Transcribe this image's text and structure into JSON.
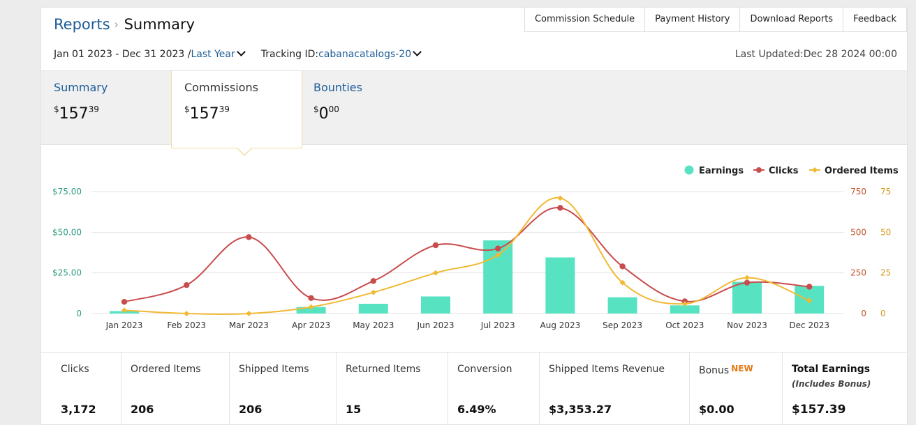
{
  "breadcrumb": {
    "root": "Reports",
    "current": "Summary"
  },
  "top_links": [
    "Commission Schedule",
    "Payment History",
    "Download Reports",
    "Feedback"
  ],
  "date_range": {
    "text": "Jan 01 2023 - Dec 31 2023 /",
    "preset": "Last Year"
  },
  "tracking": {
    "label": "Tracking ID:",
    "value": "cabanacatalogs-20"
  },
  "last_updated": "Last Updated:Dec 28 2024 00:00",
  "tabs": [
    {
      "label": "Summary",
      "dollar": "$",
      "whole": "157",
      "cents": "39"
    },
    {
      "label": "Commissions",
      "dollar": "$",
      "whole": "157",
      "cents": "39"
    },
    {
      "label": "Bounties",
      "dollar": "$",
      "whole": "0",
      "cents": "00"
    }
  ],
  "chart_data": {
    "type": "bar+line",
    "categories": [
      "Jan 2023",
      "Feb 2023",
      "Mar 2023",
      "Apr 2023",
      "May 2023",
      "Jun 2023",
      "Jul 2023",
      "Aug 2023",
      "Sep 2023",
      "Oct 2023",
      "Nov 2023",
      "Dec 2023"
    ],
    "series": [
      {
        "name": "Earnings",
        "type": "bar",
        "axis": "left",
        "color": "#57e2c2",
        "values": [
          1.5,
          0,
          0,
          4,
          6,
          10.5,
          45,
          34.5,
          10,
          5,
          19.5,
          17
        ]
      },
      {
        "name": "Clicks",
        "type": "line",
        "axis": "right1",
        "color": "#c94c4c",
        "values": [
          72,
          175,
          470,
          95,
          200,
          420,
          400,
          650,
          290,
          75,
          190,
          165
        ]
      },
      {
        "name": "Ordered Items",
        "type": "line",
        "axis": "right2",
        "color": "#f1b933",
        "values": [
          2,
          0,
          0,
          4,
          13,
          25,
          36,
          71,
          19,
          6,
          22,
          8
        ]
      }
    ],
    "y_left": {
      "ticks": [
        "0",
        "$25.00",
        "$50.00",
        "$75.00"
      ],
      "ylim": [
        0,
        75
      ]
    },
    "y_right1": {
      "ticks": [
        "0",
        "250",
        "500",
        "750"
      ],
      "ylim": [
        0,
        750
      ]
    },
    "y_right2": {
      "ticks": [
        "0",
        "25",
        "50",
        "75"
      ],
      "ylim": [
        0,
        75
      ]
    },
    "legend_position": "top-right",
    "grid": true
  },
  "stats": [
    {
      "label": "Clicks",
      "value": "3,172"
    },
    {
      "label": "Ordered Items",
      "value": "206"
    },
    {
      "label": "Shipped Items",
      "value": "206"
    },
    {
      "label": "Returned Items",
      "value": "15"
    },
    {
      "label": "Conversion",
      "value": "6.49%"
    },
    {
      "label": "Shipped Items Revenue",
      "value": "$3,353.27"
    },
    {
      "label": "Bonus",
      "badge": "NEW",
      "value": "$0.00"
    },
    {
      "label": "Total Earnings",
      "sublabel": "(Includes Bonus)",
      "value": "$157.39"
    }
  ]
}
